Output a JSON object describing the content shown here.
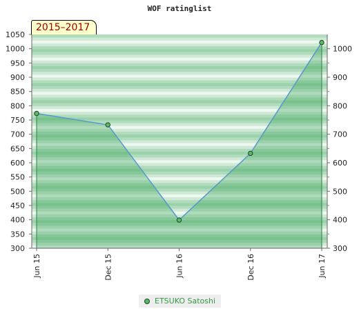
{
  "chart_data": {
    "type": "area",
    "title": "WOF ratinglist",
    "period_label": "2015–2017",
    "x": [
      "Jun 15",
      "Dec 15",
      "Jun 16",
      "Dec 16",
      "Jun 17"
    ],
    "series": [
      {
        "name": "ETSUKO Satoshi",
        "values": [
          773,
          733,
          399,
          633,
          1022
        ]
      }
    ],
    "ylim": [
      300,
      1050
    ],
    "y_ticks_left": [
      300,
      350,
      400,
      450,
      500,
      550,
      600,
      650,
      700,
      750,
      800,
      850,
      900,
      950,
      1000,
      1050
    ],
    "y_ticks_right": [
      300,
      400,
      500,
      600,
      700,
      800,
      900,
      1000
    ],
    "legend_position": "bottom-center",
    "grid": "horizontal bands",
    "colors": {
      "line": "#5599cc",
      "area_fill": "#2e9e4e",
      "marker": "#55bb66",
      "band_dark": "#9bd2ac",
      "band_light": "#eef7f0"
    }
  }
}
